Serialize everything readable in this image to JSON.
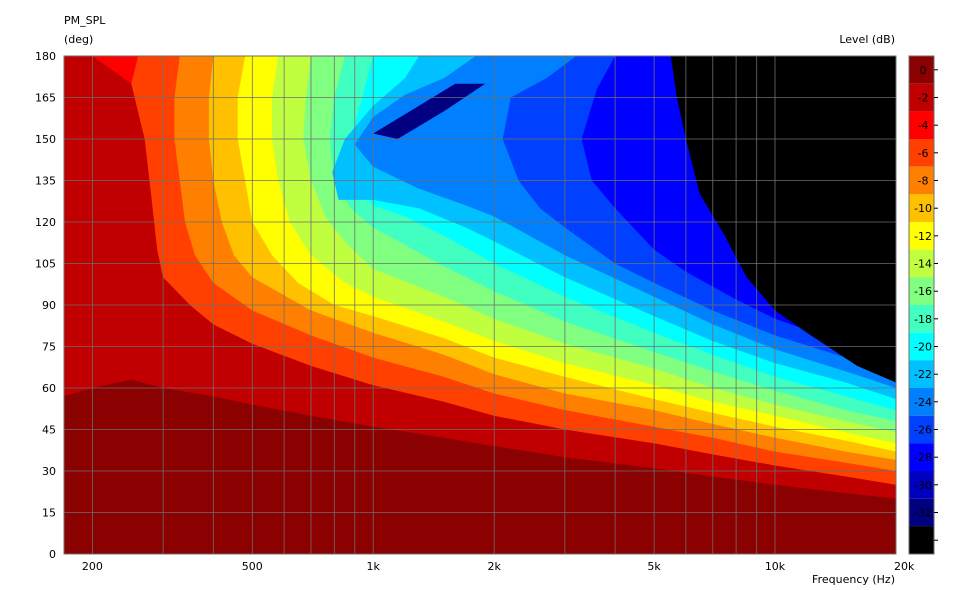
{
  "chart_data": {
    "type": "heatmap",
    "title": "PM_SPL",
    "subtitle": "(deg)",
    "xlabel": "Frequency  (Hz)",
    "colorbar_label": "Level  (dB)",
    "x_scale": "log",
    "xlim": [
      170,
      20000
    ],
    "ylim": [
      0,
      180
    ],
    "grid": true,
    "x_ticks": [
      {
        "value": 200,
        "label": "200"
      },
      {
        "value": 500,
        "label": "500"
      },
      {
        "value": 1000,
        "label": "1k"
      },
      {
        "value": 2000,
        "label": "2k"
      },
      {
        "value": 5000,
        "label": "5k"
      },
      {
        "value": 10000,
        "label": "10k"
      },
      {
        "value": 20000,
        "label": "20k"
      }
    ],
    "y_ticks": [
      {
        "value": 0,
        "label": "0"
      },
      {
        "value": 15,
        "label": "15"
      },
      {
        "value": 30,
        "label": "30"
      },
      {
        "value": 45,
        "label": "45"
      },
      {
        "value": 60,
        "label": "60"
      },
      {
        "value": 75,
        "label": "75"
      },
      {
        "value": 90,
        "label": "90"
      },
      {
        "value": 105,
        "label": "105"
      },
      {
        "value": 120,
        "label": "120"
      },
      {
        "value": 135,
        "label": "135"
      },
      {
        "value": 150,
        "label": "150"
      },
      {
        "value": 165,
        "label": "165"
      },
      {
        "value": 180,
        "label": "180"
      }
    ],
    "colorbar": {
      "range": [
        -35,
        1
      ],
      "ticks": [
        {
          "value": 0,
          "label": "0"
        },
        {
          "value": -2,
          "label": "-2"
        },
        {
          "value": -4,
          "label": "-4"
        },
        {
          "value": -6,
          "label": "-6"
        },
        {
          "value": -8,
          "label": "-8"
        },
        {
          "value": -10,
          "label": "-10"
        },
        {
          "value": -12,
          "label": "-12"
        },
        {
          "value": -14,
          "label": "-14"
        },
        {
          "value": -16,
          "label": "-16"
        },
        {
          "value": -18,
          "label": "-18"
        },
        {
          "value": -20,
          "label": "-20"
        },
        {
          "value": -22,
          "label": "-22"
        },
        {
          "value": -24,
          "label": "-24"
        },
        {
          "value": -26,
          "label": "-26"
        },
        {
          "value": -28,
          "label": "-28"
        },
        {
          "value": -30,
          "label": "-30"
        },
        {
          "value": -32,
          "label": "-32"
        },
        {
          "value": -34,
          "label": "-34"
        }
      ],
      "bands": [
        {
          "from": 1,
          "to": -1,
          "color": "#8b0000"
        },
        {
          "from": -1,
          "to": -3,
          "color": "#c00000"
        },
        {
          "from": -3,
          "to": -5,
          "color": "#ff0000"
        },
        {
          "from": -5,
          "to": -7,
          "color": "#ff4000"
        },
        {
          "from": -7,
          "to": -9,
          "color": "#ff8000"
        },
        {
          "from": -9,
          "to": -11,
          "color": "#ffc000"
        },
        {
          "from": -11,
          "to": -13,
          "color": "#ffff00"
        },
        {
          "from": -13,
          "to": -15,
          "color": "#c0ff40"
        },
        {
          "from": -15,
          "to": -17,
          "color": "#80ff80"
        },
        {
          "from": -17,
          "to": -19,
          "color": "#40ffc0"
        },
        {
          "from": -19,
          "to": -21,
          "color": "#00ffff"
        },
        {
          "from": -21,
          "to": -23,
          "color": "#00c0ff"
        },
        {
          "from": -23,
          "to": -25,
          "color": "#0080ff"
        },
        {
          "from": -25,
          "to": -27,
          "color": "#0040ff"
        },
        {
          "from": -27,
          "to": -29,
          "color": "#0000ff"
        },
        {
          "from": -29,
          "to": -31,
          "color": "#0000c0"
        },
        {
          "from": -31,
          "to": -33,
          "color": "#000080"
        },
        {
          "from": -33,
          "to": -35,
          "color": "#000000"
        }
      ]
    },
    "contour_levels": [
      {
        "level": -1,
        "points": [
          [
            170,
            57
          ],
          [
            200,
            60
          ],
          [
            250,
            63
          ],
          [
            300,
            60
          ],
          [
            400,
            57
          ],
          [
            500,
            54
          ],
          [
            700,
            50
          ],
          [
            1000,
            46
          ],
          [
            1500,
            42
          ],
          [
            2000,
            39
          ],
          [
            3000,
            35
          ],
          [
            5000,
            31
          ],
          [
            7000,
            28
          ],
          [
            10000,
            25
          ],
          [
            15000,
            22
          ],
          [
            20000,
            20
          ]
        ]
      },
      {
        "level": -3,
        "points": [
          [
            170,
            180
          ],
          [
            200,
            180
          ],
          [
            250,
            170
          ],
          [
            270,
            150
          ],
          [
            280,
            130
          ],
          [
            290,
            110
          ],
          [
            300,
            100
          ],
          [
            350,
            90
          ],
          [
            400,
            83
          ],
          [
            500,
            76
          ],
          [
            700,
            68
          ],
          [
            1000,
            61
          ],
          [
            1500,
            55
          ],
          [
            2000,
            50
          ],
          [
            3000,
            45
          ],
          [
            5000,
            40
          ],
          [
            7000,
            36
          ],
          [
            10000,
            32
          ],
          [
            15000,
            28
          ],
          [
            20000,
            25
          ]
        ]
      },
      {
        "level": -5,
        "points": [
          [
            260,
            180
          ],
          [
            250,
            170
          ],
          [
            270,
            150
          ],
          [
            280,
            130
          ],
          [
            290,
            110
          ],
          [
            300,
            100
          ],
          [
            350,
            90
          ],
          [
            400,
            83
          ],
          [
            500,
            76
          ],
          [
            700,
            68
          ],
          [
            1000,
            61
          ],
          [
            1500,
            55
          ],
          [
            2000,
            50
          ],
          [
            3000,
            45
          ],
          [
            5000,
            40
          ],
          [
            7000,
            36
          ],
          [
            10000,
            32
          ],
          [
            15000,
            28
          ],
          [
            20000,
            25
          ]
        ]
      },
      {
        "level": -7,
        "points": [
          [
            330,
            180
          ],
          [
            320,
            165
          ],
          [
            320,
            150
          ],
          [
            330,
            135
          ],
          [
            340,
            120
          ],
          [
            360,
            108
          ],
          [
            400,
            98
          ],
          [
            500,
            88
          ],
          [
            700,
            79
          ],
          [
            1000,
            71
          ],
          [
            1500,
            64
          ],
          [
            2000,
            58
          ],
          [
            3000,
            52
          ],
          [
            5000,
            46
          ],
          [
            7000,
            42
          ],
          [
            10000,
            37
          ],
          [
            15000,
            33
          ],
          [
            20000,
            30
          ]
        ]
      },
      {
        "level": -9,
        "points": [
          [
            400,
            180
          ],
          [
            390,
            165
          ],
          [
            390,
            150
          ],
          [
            400,
            135
          ],
          [
            420,
            120
          ],
          [
            450,
            108
          ],
          [
            500,
            100
          ],
          [
            700,
            88
          ],
          [
            1000,
            80
          ],
          [
            1500,
            72
          ],
          [
            2000,
            65
          ],
          [
            3000,
            58
          ],
          [
            5000,
            52
          ],
          [
            7000,
            47
          ],
          [
            10000,
            42
          ],
          [
            15000,
            37
          ],
          [
            20000,
            34
          ]
        ]
      },
      {
        "level": -11,
        "points": [
          [
            480,
            180
          ],
          [
            460,
            165
          ],
          [
            460,
            150
          ],
          [
            480,
            135
          ],
          [
            500,
            120
          ],
          [
            560,
            108
          ],
          [
            650,
            98
          ],
          [
            800,
            90
          ],
          [
            1000,
            86
          ],
          [
            1500,
            78
          ],
          [
            2000,
            71
          ],
          [
            3000,
            64
          ],
          [
            5000,
            56
          ],
          [
            7000,
            51
          ],
          [
            10000,
            46
          ],
          [
            15000,
            41
          ],
          [
            20000,
            37
          ]
        ]
      },
      {
        "level": -13,
        "points": [
          [
            580,
            180
          ],
          [
            560,
            165
          ],
          [
            560,
            150
          ],
          [
            580,
            135
          ],
          [
            620,
            120
          ],
          [
            700,
            108
          ],
          [
            850,
            98
          ],
          [
            1000,
            93
          ],
          [
            1500,
            84
          ],
          [
            2000,
            77
          ],
          [
            3000,
            69
          ],
          [
            5000,
            61
          ],
          [
            7000,
            55
          ],
          [
            10000,
            50
          ],
          [
            15000,
            44
          ],
          [
            20000,
            40
          ]
        ]
      },
      {
        "level": -15,
        "points": [
          [
            700,
            180
          ],
          [
            680,
            165
          ],
          [
            670,
            150
          ],
          [
            700,
            135
          ],
          [
            760,
            122
          ],
          [
            860,
            112
          ],
          [
            1000,
            103
          ],
          [
            1500,
            93
          ],
          [
            2000,
            85
          ],
          [
            3000,
            76
          ],
          [
            5000,
            67
          ],
          [
            7000,
            60
          ],
          [
            10000,
            54
          ],
          [
            15000,
            48
          ],
          [
            20000,
            44
          ]
        ]
      },
      {
        "level": -17,
        "points": [
          [
            850,
            180
          ],
          [
            800,
            165
          ],
          [
            780,
            150
          ],
          [
            800,
            135
          ],
          [
            880,
            125
          ],
          [
            1000,
            118
          ],
          [
            1500,
            104
          ],
          [
            2000,
            95
          ],
          [
            3000,
            84
          ],
          [
            5000,
            73
          ],
          [
            7000,
            66
          ],
          [
            10000,
            59
          ],
          [
            15000,
            52
          ],
          [
            20000,
            48
          ]
        ]
      },
      {
        "level": -19,
        "points": [
          [
            1000,
            180
          ],
          [
            950,
            168
          ],
          [
            900,
            155
          ],
          [
            880,
            145
          ],
          [
            900,
            135
          ],
          [
            1000,
            126
          ],
          [
            1200,
            122
          ],
          [
            1500,
            115
          ],
          [
            2000,
            105
          ],
          [
            3000,
            93
          ],
          [
            5000,
            80
          ],
          [
            7000,
            72
          ],
          [
            10000,
            64
          ],
          [
            15000,
            57
          ],
          [
            20000,
            52
          ]
        ]
      },
      {
        "level": -21,
        "points": [
          [
            1300,
            180
          ],
          [
            1200,
            172
          ],
          [
            1000,
            162
          ],
          [
            850,
            150
          ],
          [
            790,
            138
          ],
          [
            820,
            128
          ],
          [
            1000,
            128
          ],
          [
            1300,
            125
          ],
          [
            1700,
            118
          ],
          [
            2000,
            113
          ],
          [
            3000,
            100
          ],
          [
            5000,
            86
          ],
          [
            7000,
            77
          ],
          [
            10000,
            69
          ],
          [
            15000,
            62
          ],
          [
            20000,
            56
          ]
        ]
      },
      {
        "level": -23,
        "points": [
          [
            1800,
            180
          ],
          [
            1500,
            172
          ],
          [
            1200,
            166
          ],
          [
            1000,
            158
          ],
          [
            900,
            148
          ],
          [
            1000,
            140
          ],
          [
            1300,
            132
          ],
          [
            1700,
            126
          ],
          [
            2000,
            122
          ],
          [
            3000,
            108
          ],
          [
            5000,
            93
          ],
          [
            7000,
            83
          ],
          [
            10000,
            74
          ],
          [
            15000,
            66
          ],
          [
            20000,
            60
          ]
        ]
      },
      {
        "level": -25,
        "points": [
          [
            3200,
            180
          ],
          [
            2700,
            172
          ],
          [
            2200,
            165
          ],
          [
            2100,
            150
          ],
          [
            2300,
            135
          ],
          [
            2600,
            125
          ],
          [
            3000,
            118
          ],
          [
            4000,
            105
          ],
          [
            5000,
            98
          ],
          [
            7000,
            88
          ],
          [
            10000,
            79
          ],
          [
            15000,
            71
          ],
          [
            20000,
            65
          ]
        ]
      },
      {
        "level": -27,
        "points": [
          [
            4000,
            180
          ],
          [
            3600,
            168
          ],
          [
            3300,
            150
          ],
          [
            3500,
            135
          ],
          [
            4000,
            125
          ],
          [
            5000,
            110
          ],
          [
            6000,
            102
          ],
          [
            8000,
            92
          ],
          [
            10000,
            85
          ],
          [
            15000,
            76
          ],
          [
            20000,
            70
          ]
        ]
      }
    ],
    "null_regions": [
      {
        "level": -33,
        "points": [
          [
            5500,
            180
          ],
          [
            20000,
            180
          ],
          [
            20000,
            62
          ],
          [
            16000,
            68
          ],
          [
            12000,
            80
          ],
          [
            10000,
            88
          ],
          [
            8500,
            100
          ],
          [
            7500,
            115
          ],
          [
            6500,
            130
          ],
          [
            6000,
            150
          ],
          [
            5700,
            165
          ],
          [
            5500,
            180
          ]
        ]
      },
      {
        "level": -31,
        "points": [
          [
            1000,
            152
          ],
          [
            1300,
            162
          ],
          [
            1600,
            170
          ],
          [
            1900,
            170
          ],
          [
            1500,
            160
          ],
          [
            1150,
            150
          ],
          [
            1000,
            152
          ]
        ]
      }
    ]
  }
}
